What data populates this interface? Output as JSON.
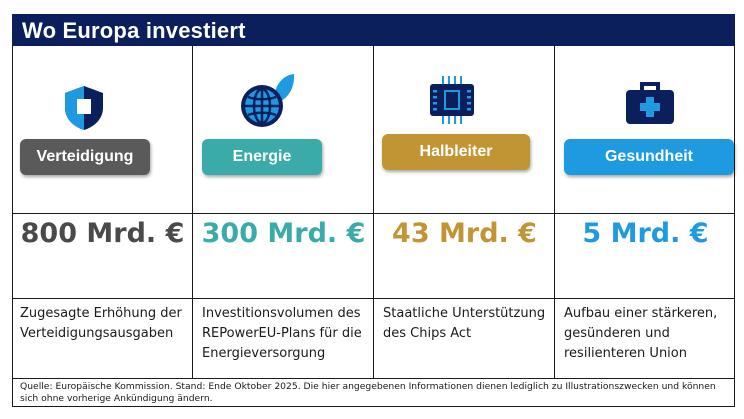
{
  "title": "Wo Europa investiert",
  "columns": [
    {
      "category": "Verteidigung",
      "amount": "800 Mrd. €",
      "description": "Zugesagte Erhöhung der Verteidigungsausgaben",
      "color": "#5a5a5a",
      "icon": "shield-icon"
    },
    {
      "category": "Energie",
      "amount": "300 Mrd. €",
      "description": "Investitionsvolumen des REPowerEU-Plans für die Energieversorgung",
      "color": "#3aaba9",
      "icon": "globe-leaf-icon"
    },
    {
      "category": "Halbleiter",
      "amount": "43 Mrd. €",
      "description": "Staatliche Unterstützung des Chips Act",
      "color": "#c19534",
      "icon": "chip-icon"
    },
    {
      "category": "Gesundheit",
      "amount": "5 Mrd. €",
      "description": "Aufbau einer stärkeren, gesünderen und resilienteren Union",
      "color": "#1e9ae0",
      "icon": "medical-kit-icon"
    }
  ],
  "source": "Quelle: Europäische Kommission. Stand: Ende Oktober 2025. Die hier angegebenen Informationen dienen lediglich zu Illustrationszwecken und können sich ohne vorherige Ankündigung ändern.",
  "colors": {
    "header_bg": "#0b1f5c",
    "dark_navy": "#0b1f5c",
    "blue": "#1e9ae0"
  }
}
